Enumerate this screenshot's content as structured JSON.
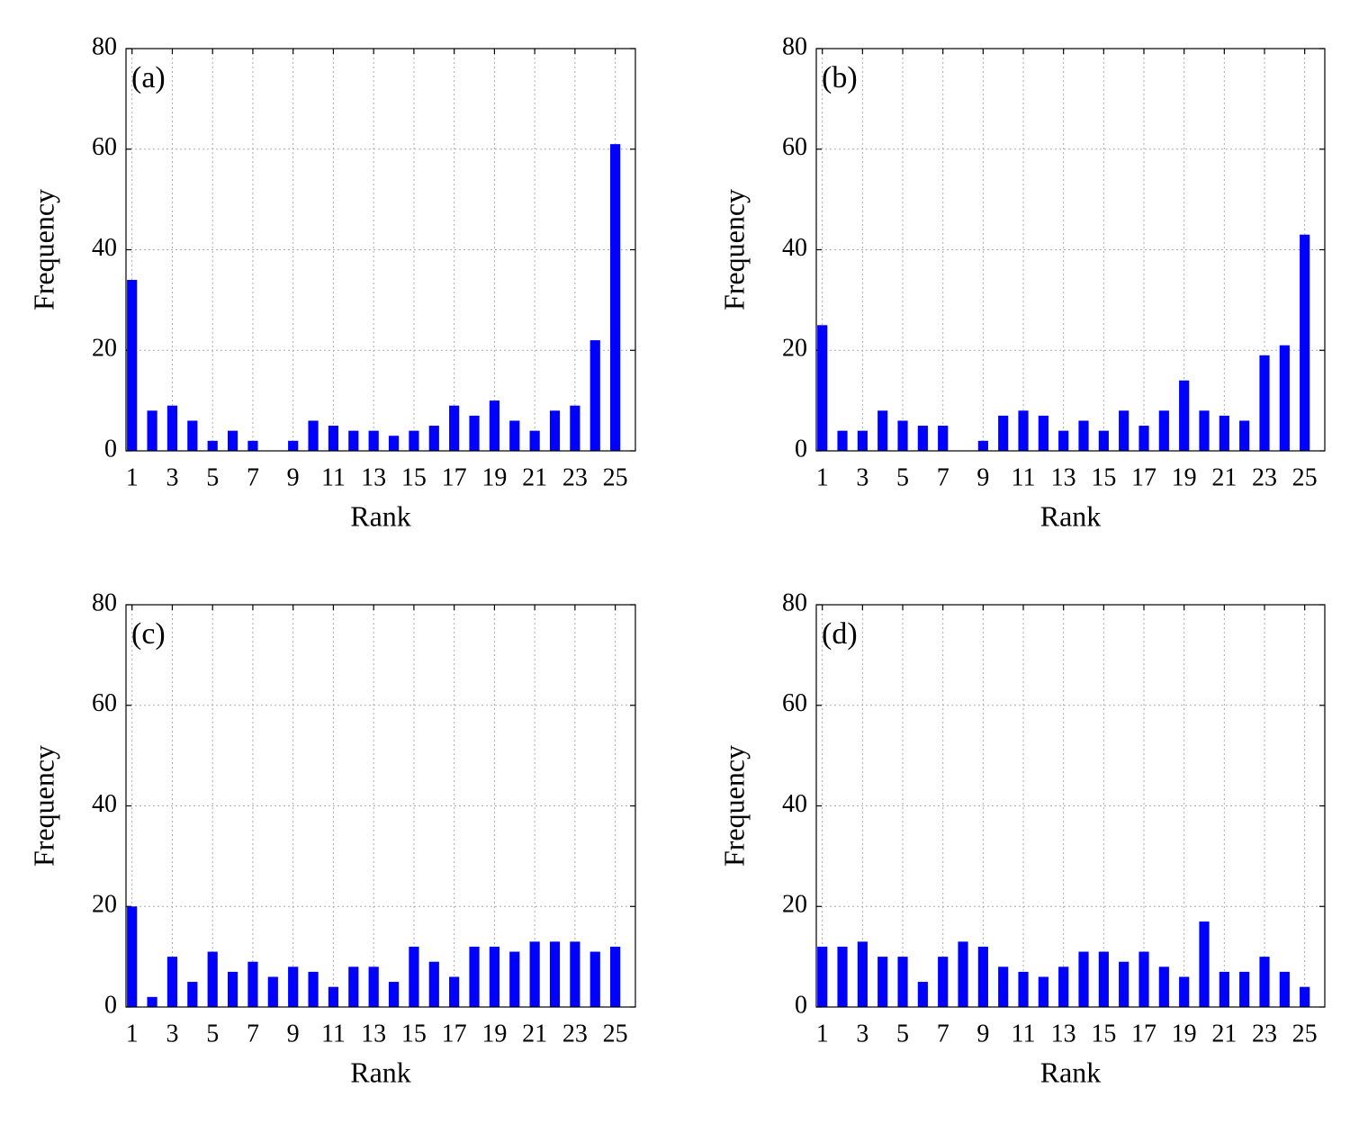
{
  "chart_data": [
    {
      "type": "bar",
      "annotation": "(a)",
      "xlabel": "Rank",
      "ylabel": "Frequency",
      "color": "#0000ff",
      "grid": true,
      "x": [
        1,
        2,
        3,
        4,
        5,
        6,
        7,
        8,
        9,
        10,
        11,
        12,
        13,
        14,
        15,
        16,
        17,
        18,
        19,
        20,
        21,
        22,
        23,
        24,
        25
      ],
      "values": [
        34,
        8,
        9,
        6,
        2,
        4,
        2,
        0,
        2,
        6,
        5,
        4,
        4,
        3,
        4,
        5,
        9,
        7,
        10,
        6,
        4,
        8,
        9,
        22,
        61
      ],
      "xlim": [
        0.7,
        26
      ],
      "ylim": [
        0,
        80
      ],
      "xticks": [
        1,
        3,
        5,
        7,
        9,
        11,
        13,
        15,
        17,
        19,
        21,
        23,
        25
      ],
      "yticks": [
        0,
        20,
        40,
        60,
        80
      ]
    },
    {
      "type": "bar",
      "annotation": "(b)",
      "xlabel": "Rank",
      "ylabel": "Frequency",
      "color": "#0000ff",
      "grid": true,
      "x": [
        1,
        2,
        3,
        4,
        5,
        6,
        7,
        8,
        9,
        10,
        11,
        12,
        13,
        14,
        15,
        16,
        17,
        18,
        19,
        20,
        21,
        22,
        23,
        24,
        25
      ],
      "values": [
        25,
        4,
        4,
        8,
        6,
        5,
        5,
        0,
        2,
        7,
        8,
        7,
        4,
        6,
        4,
        8,
        5,
        8,
        14,
        8,
        7,
        6,
        19,
        21,
        43
      ],
      "xlim": [
        0.7,
        26
      ],
      "ylim": [
        0,
        80
      ],
      "xticks": [
        1,
        3,
        5,
        7,
        9,
        11,
        13,
        15,
        17,
        19,
        21,
        23,
        25
      ],
      "yticks": [
        0,
        20,
        40,
        60,
        80
      ]
    },
    {
      "type": "bar",
      "annotation": "(c)",
      "xlabel": "Rank",
      "ylabel": "Frequency",
      "color": "#0000ff",
      "grid": true,
      "x": [
        1,
        2,
        3,
        4,
        5,
        6,
        7,
        8,
        9,
        10,
        11,
        12,
        13,
        14,
        15,
        16,
        17,
        18,
        19,
        20,
        21,
        22,
        23,
        24,
        25
      ],
      "values": [
        20,
        2,
        10,
        5,
        11,
        7,
        9,
        6,
        8,
        7,
        4,
        8,
        8,
        5,
        12,
        9,
        6,
        12,
        12,
        11,
        13,
        13,
        13,
        11,
        12
      ],
      "xlim": [
        0.7,
        26
      ],
      "ylim": [
        0,
        80
      ],
      "xticks": [
        1,
        3,
        5,
        7,
        9,
        11,
        13,
        15,
        17,
        19,
        21,
        23,
        25
      ],
      "yticks": [
        0,
        20,
        40,
        60,
        80
      ]
    },
    {
      "type": "bar",
      "annotation": "(d)",
      "xlabel": "Rank",
      "ylabel": "Frequency",
      "color": "#0000ff",
      "grid": true,
      "x": [
        1,
        2,
        3,
        4,
        5,
        6,
        7,
        8,
        9,
        10,
        11,
        12,
        13,
        14,
        15,
        16,
        17,
        18,
        19,
        20,
        21,
        22,
        23,
        24,
        25
      ],
      "values": [
        12,
        12,
        13,
        10,
        10,
        5,
        10,
        13,
        12,
        8,
        7,
        6,
        8,
        11,
        11,
        9,
        11,
        8,
        6,
        17,
        7,
        7,
        10,
        7,
        4
      ],
      "xlim": [
        0.7,
        26
      ],
      "ylim": [
        0,
        80
      ],
      "xticks": [
        1,
        3,
        5,
        7,
        9,
        11,
        13,
        15,
        17,
        19,
        21,
        23,
        25
      ],
      "yticks": [
        0,
        20,
        40,
        60,
        80
      ]
    }
  ]
}
